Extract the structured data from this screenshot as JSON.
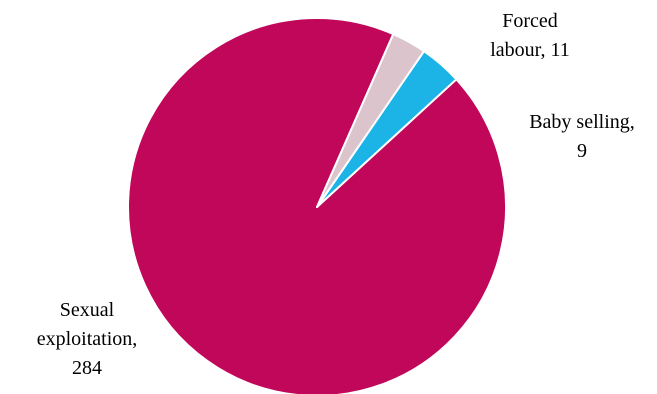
{
  "chart_data": {
    "type": "pie",
    "title": "",
    "slices": [
      {
        "label": "Sexual exploitation",
        "value": 284,
        "color": "#C0075A",
        "label_lines": [
          "Sexual",
          "exploitation,",
          "284"
        ]
      },
      {
        "label": "Forced labour",
        "value": 11,
        "color": "#1CB3E6",
        "label_lines": [
          "Forced",
          "labour, 11"
        ]
      },
      {
        "label": "Baby selling",
        "value": 9,
        "color": "#DCC4CD",
        "label_lines": [
          "Baby selling,",
          "9"
        ]
      }
    ],
    "start_angle_deg": 42.5,
    "direction": "counterclockwise",
    "legend": "none",
    "slice_border": "#ffffff"
  }
}
